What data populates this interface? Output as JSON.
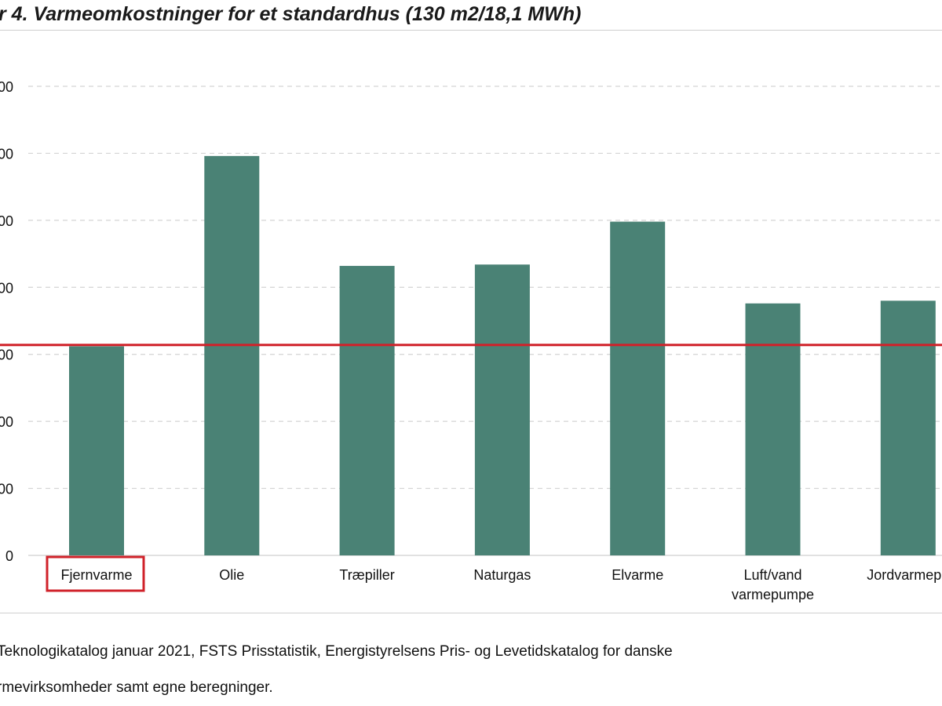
{
  "header": {
    "title": "r 4. Varmeomkostninger for et standardhus (130 m2/18,1 MWh)"
  },
  "source": {
    "line1": "Teknologikatalog januar 2021, FSTS Prisstatistik, Energistyrelsens Pris- og Levetidskatalog for danske",
    "line2": "rmevirksomheder samt egne beregninger."
  },
  "chart_data": {
    "type": "bar",
    "categories": [
      "Fjernvarme",
      "Olie",
      "Træpiller",
      "Naturgas",
      "Elvarme",
      "Luft/vand varmepumpe",
      "Jordvarmepu"
    ],
    "category_lines": [
      [
        "Fjernvarme"
      ],
      [
        "Olie"
      ],
      [
        "Træpiller"
      ],
      [
        "Naturgas"
      ],
      [
        "Elvarme"
      ],
      [
        "Luft/vand",
        "varmepumpe"
      ],
      [
        "Jordvarmepu"
      ]
    ],
    "values": [
      15.6,
      29.8,
      21.6,
      21.7,
      24.9,
      18.8,
      19.0
    ],
    "ylim": [
      0,
      35
    ],
    "y_ticks": [
      0,
      5,
      10,
      15,
      20,
      25,
      30,
      35
    ],
    "y_tick_labels": [
      "0",
      "00",
      "00",
      "00",
      "00",
      "00",
      "00",
      "00"
    ],
    "reference_line": 15.7,
    "highlighted_category": "Fjernvarme",
    "grid": true,
    "colors": {
      "bar": "#4a8275",
      "reference_line": "#d0222a",
      "highlight_box": "#d0222a",
      "grid": "#d4d4d4"
    },
    "title": "",
    "xlabel": "",
    "ylabel": ""
  }
}
